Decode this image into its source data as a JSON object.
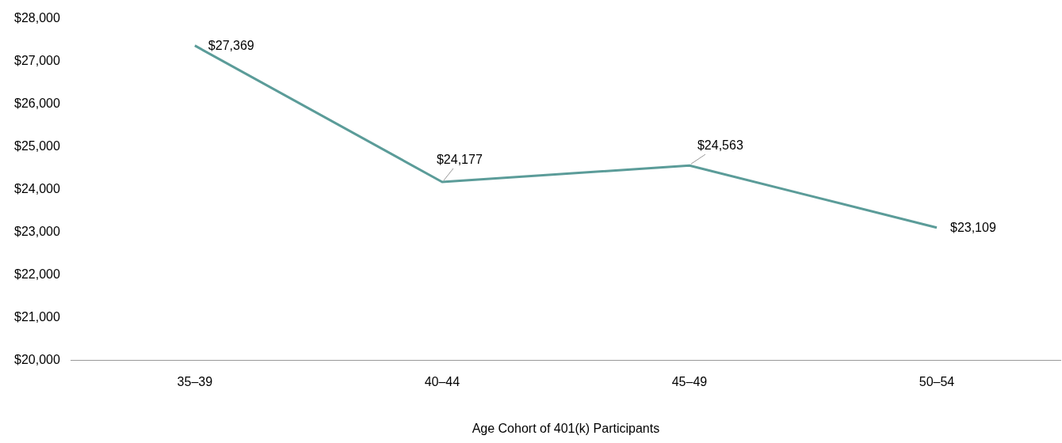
{
  "chart_data": {
    "type": "line",
    "xlabel": "Age Cohort of 401(k) Participants",
    "categories": [
      "35–39",
      "40–44",
      "45–49",
      "50–54"
    ],
    "series": [
      {
        "color": "#5b9c99",
        "values": [
          27369,
          24177,
          24563,
          23109
        ],
        "value_labels": [
          "$27,369",
          "$24,177",
          "$24,563",
          "$23,109"
        ]
      }
    ],
    "ylim": [
      20000,
      28000
    ],
    "yticks": [
      {
        "value": 20000,
        "label": "$20,000"
      },
      {
        "value": 21000,
        "label": "$21,000"
      },
      {
        "value": 22000,
        "label": "$22,000"
      },
      {
        "value": 23000,
        "label": "$23,000"
      },
      {
        "value": 24000,
        "label": "$24,000"
      },
      {
        "value": 25000,
        "label": "$25,000"
      },
      {
        "value": 26000,
        "label": "$26,000"
      },
      {
        "value": 27000,
        "label": "$27,000"
      },
      {
        "value": 28000,
        "label": "$28,000"
      }
    ],
    "grid": false,
    "legend": false,
    "marker": "none",
    "line_style": "solid"
  }
}
